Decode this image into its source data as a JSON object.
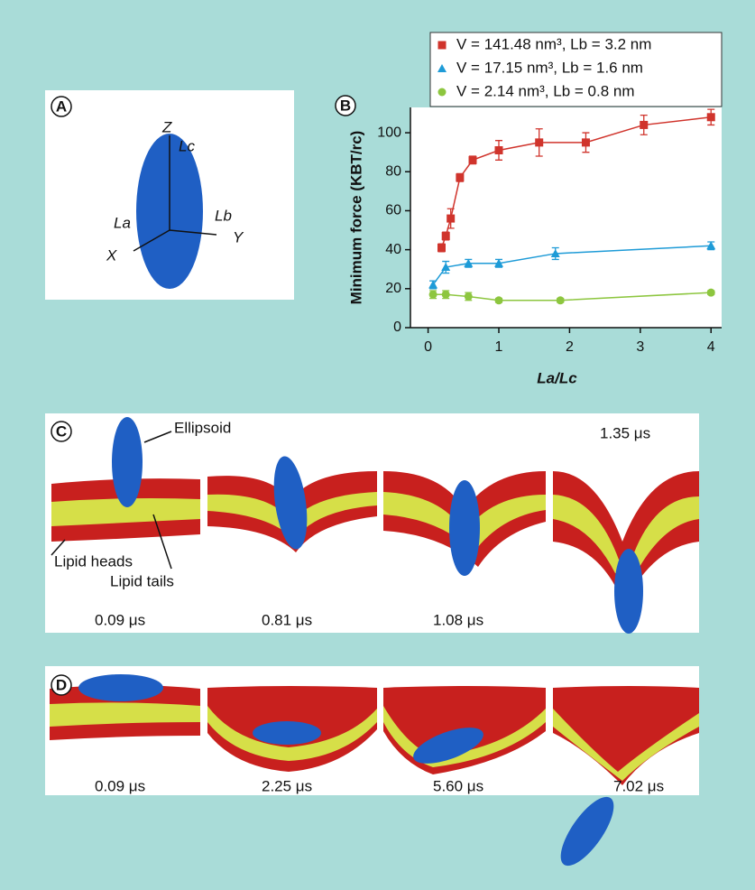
{
  "chart_data": {
    "type": "line",
    "xlabel": "La/Lc",
    "ylabel": "Minimum force (KBT/rc)",
    "xlim": [
      -0.25,
      4.15
    ],
    "ylim": [
      0,
      113
    ],
    "xticks": [
      0,
      1,
      2,
      3,
      4
    ],
    "yticks": [
      0,
      20,
      40,
      60,
      80,
      100
    ],
    "series": [
      {
        "name": "V = 141.48 nm³, Lb = 3.2 nm",
        "color": "#d0342c",
        "marker": "square",
        "x": [
          0.19,
          0.25,
          0.32,
          0.45,
          0.63,
          1.0,
          1.57,
          2.23,
          3.05,
          4.0
        ],
        "values": [
          41,
          47,
          56,
          77,
          86,
          91,
          95,
          95,
          104,
          108
        ],
        "errors": [
          2,
          2,
          5,
          2,
          2,
          5,
          7,
          5,
          5,
          4
        ]
      },
      {
        "name": "V = 17.15 nm³, Lb = 1.6 nm",
        "color": "#1e9bd7",
        "marker": "triangle",
        "x": [
          0.07,
          0.25,
          0.57,
          1.0,
          1.8,
          4.0
        ],
        "values": [
          22,
          31,
          33,
          33,
          38,
          42
        ],
        "errors": [
          2,
          3,
          2,
          2,
          3,
          2
        ]
      },
      {
        "name": "V = 2.14 nm³, Lb = 0.8 nm",
        "color": "#8dc63f",
        "marker": "circle",
        "x": [
          0.07,
          0.25,
          0.57,
          1.0,
          1.87,
          4.0
        ],
        "values": [
          17,
          17,
          16,
          14,
          14,
          18
        ],
        "errors": [
          2,
          2,
          2,
          1,
          1,
          1
        ]
      }
    ]
  },
  "panels": {
    "a": {
      "label": "A",
      "z": "Z",
      "lc": "Lc",
      "la": "La",
      "lb": "Lb",
      "y": "Y",
      "x": "X"
    },
    "b": {
      "label": "B"
    },
    "c": {
      "label": "C",
      "ellipsoid": "Ellipsoid",
      "heads": "Lipid heads",
      "tails": "Lipid tails",
      "times": [
        "0.09 μs",
        "0.81 μs",
        "1.08 μs",
        "1.35 μs"
      ]
    },
    "d": {
      "label": "D",
      "times": [
        "0.09 μs",
        "2.25 μs",
        "5.60 μs",
        "7.02 μs"
      ]
    }
  }
}
